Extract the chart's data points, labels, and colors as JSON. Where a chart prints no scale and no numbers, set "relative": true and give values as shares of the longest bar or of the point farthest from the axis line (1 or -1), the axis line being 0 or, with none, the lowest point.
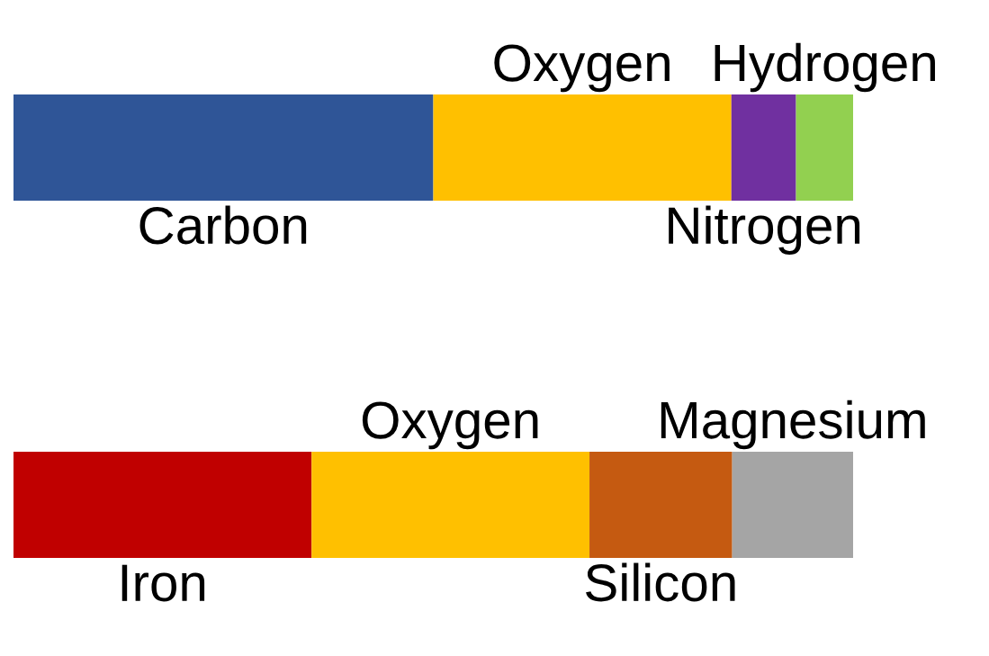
{
  "chart_data": [
    {
      "type": "bar",
      "orientation": "horizontal",
      "stacked": true,
      "relative": true,
      "categories": [
        null
      ],
      "series": [
        {
          "name": "Carbon",
          "color": "#2f5597",
          "values": [
            0.5
          ]
        },
        {
          "name": "Oxygen",
          "color": "#ffc000",
          "values": [
            0.355
          ]
        },
        {
          "name": "Nitrogen",
          "color": "#7030a0",
          "values": [
            0.077
          ]
        },
        {
          "name": "Hydrogen",
          "color": "#92d050",
          "values": [
            0.068
          ]
        }
      ]
    },
    {
      "type": "bar",
      "orientation": "horizontal",
      "stacked": true,
      "relative": true,
      "categories": [
        null
      ],
      "series": [
        {
          "name": "Iron",
          "color": "#c00000",
          "values": [
            0.355
          ]
        },
        {
          "name": "Oxygen",
          "color": "#ffc000",
          "values": [
            0.331
          ]
        },
        {
          "name": "Silicon",
          "color": "#c55a11",
          "values": [
            0.17
          ]
        },
        {
          "name": "Magnesium",
          "color": "#a5a5a5",
          "values": [
            0.144
          ]
        }
      ]
    }
  ]
}
